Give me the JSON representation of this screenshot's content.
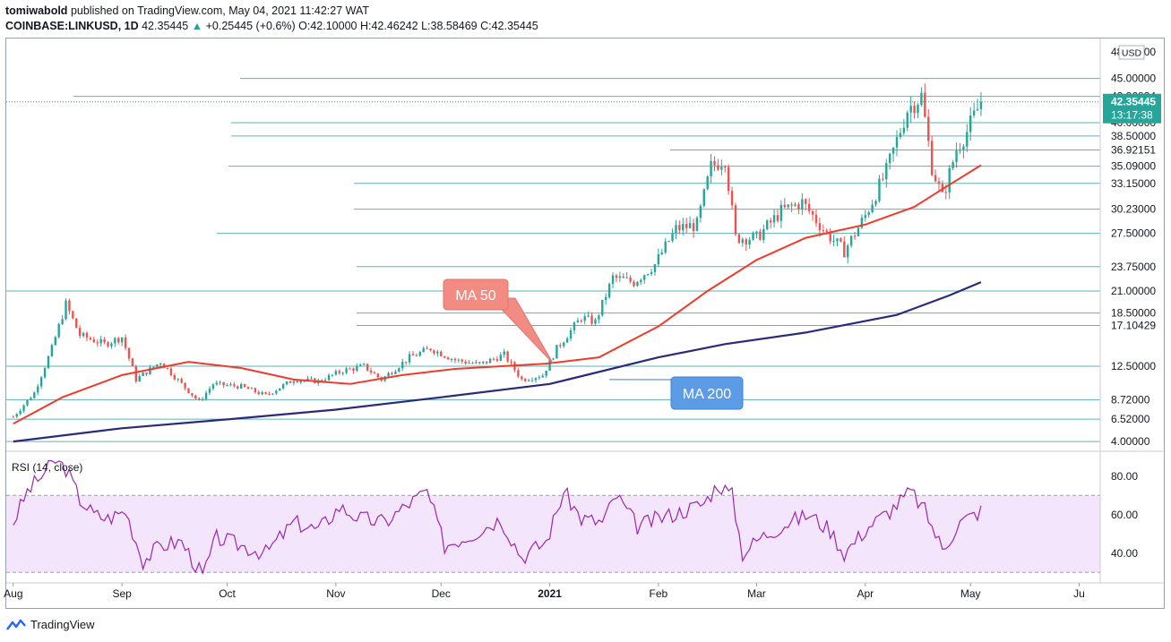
{
  "header": {
    "publisher": "tomiwabold",
    "published_text": "published on TradingView.com, May 04, 2021 11:42:27 WAT",
    "symbol": "COINBASE:LINKUSD, 1D",
    "last": "42.35445",
    "change": "+0.25445 (+0.6%)",
    "ohlc": "O:42.10000 H:42.46242 L:38.58469 C:42.35445"
  },
  "footer": {
    "brand": "TradingView",
    "logo_icon": "tradingview-logo-icon"
  },
  "colors": {
    "up": "#26a69a",
    "down": "#ef5350",
    "ma50": "#ef3b2c",
    "ma200": "#2a2a7c",
    "hline": "#5fb3b3",
    "rsi": "#9c27b0",
    "rsi_band": "#f3e5fb",
    "ma50_label_bg": "#f28b82",
    "ma200_label_bg": "#5c9ce6"
  },
  "chart_data": [
    {
      "type": "candlestick",
      "title": "COINBASE:LINKUSD, 1D",
      "currency": "USD",
      "x_ticks": [
        "Aug",
        "Sep",
        "Oct",
        "Nov",
        "Dec",
        "2021",
        "Feb",
        "Mar",
        "Apr",
        "May",
        "Ju"
      ],
      "y_range": [
        3,
        49
      ],
      "price_axis_labels": [
        "48.00000",
        "45.00000",
        "42.96834",
        "40.00000",
        "38.50000",
        "36.92151",
        "35.09000",
        "33.15000",
        "30.23000",
        "27.50000",
        "23.75000",
        "21.00000",
        "18.50000",
        "17.10429",
        "12.50000",
        "8.72000",
        "6.52000",
        "4.00000"
      ],
      "horizontal_levels": [
        45.0,
        42.96834,
        40.0,
        38.5,
        36.92151,
        35.09,
        33.15,
        30.23,
        27.5,
        23.75,
        21.0,
        18.5,
        17.10429,
        12.5,
        8.72,
        6.52,
        4.0
      ],
      "last_price": {
        "value": "42.35445",
        "countdown": "13:17:38"
      },
      "price_path": [
        [
          "2020-08-01",
          6.8
        ],
        [
          "2020-08-07",
          9.5
        ],
        [
          "2020-08-12",
          14.5
        ],
        [
          "2020-08-16",
          19.5
        ],
        [
          "2020-08-20",
          16.0
        ],
        [
          "2020-08-27",
          15.0
        ],
        [
          "2020-09-01",
          15.8
        ],
        [
          "2020-09-05",
          11.0
        ],
        [
          "2020-09-12",
          13.0
        ],
        [
          "2020-09-18",
          10.5
        ],
        [
          "2020-09-23",
          8.5
        ],
        [
          "2020-09-27",
          10.5
        ],
        [
          "2020-10-05",
          10.2
        ],
        [
          "2020-10-12",
          9.2
        ],
        [
          "2020-10-20",
          11.0
        ],
        [
          "2020-10-27",
          10.8
        ],
        [
          "2020-11-03",
          12.0
        ],
        [
          "2020-11-09",
          12.5
        ],
        [
          "2020-11-14",
          11.0
        ],
        [
          "2020-11-22",
          13.5
        ],
        [
          "2020-11-28",
          14.5
        ],
        [
          "2020-12-05",
          13.2
        ],
        [
          "2020-12-12",
          12.7
        ],
        [
          "2020-12-19",
          13.8
        ],
        [
          "2020-12-24",
          11.0
        ],
        [
          "2020-12-30",
          11.5
        ],
        [
          "2021-01-03",
          14.5
        ],
        [
          "2021-01-10",
          18.0
        ],
        [
          "2021-01-14",
          17.5
        ],
        [
          "2021-01-19",
          22.5
        ],
        [
          "2021-01-25",
          22.0
        ],
        [
          "2021-01-31",
          24.0
        ],
        [
          "2021-02-06",
          28.0
        ],
        [
          "2021-02-12",
          28.5
        ],
        [
          "2021-02-16",
          35.0
        ],
        [
          "2021-02-20",
          36.0
        ],
        [
          "2021-02-23",
          27.0
        ],
        [
          "2021-03-01",
          27.0
        ],
        [
          "2021-03-08",
          30.0
        ],
        [
          "2021-03-14",
          31.0
        ],
        [
          "2021-03-21",
          27.5
        ],
        [
          "2021-03-26",
          25.5
        ],
        [
          "2021-04-01",
          29.5
        ],
        [
          "2021-04-07",
          34.5
        ],
        [
          "2021-04-13",
          41.5
        ],
        [
          "2021-04-17",
          43.0
        ],
        [
          "2021-04-20",
          35.0
        ],
        [
          "2021-04-23",
          31.5
        ],
        [
          "2021-04-27",
          37.0
        ],
        [
          "2021-04-30",
          39.0
        ],
        [
          "2021-05-04",
          42.35
        ]
      ],
      "ma50_path": [
        [
          "2020-08-01",
          6.0
        ],
        [
          "2020-08-15",
          9.0
        ],
        [
          "2020-09-01",
          11.5
        ],
        [
          "2020-09-20",
          13.0
        ],
        [
          "2020-10-05",
          12.3
        ],
        [
          "2020-10-20",
          11.0
        ],
        [
          "2020-11-05",
          10.5
        ],
        [
          "2020-11-20",
          11.5
        ],
        [
          "2020-12-05",
          12.2
        ],
        [
          "2020-12-31",
          12.8
        ],
        [
          "2021-01-15",
          13.5
        ],
        [
          "2021-02-01",
          17.0
        ],
        [
          "2021-02-15",
          21.0
        ],
        [
          "2021-03-01",
          24.5
        ],
        [
          "2021-03-15",
          27.0
        ],
        [
          "2021-04-01",
          28.5
        ],
        [
          "2021-04-15",
          30.5
        ],
        [
          "2021-04-23",
          32.5
        ],
        [
          "2021-05-04",
          35.2
        ]
      ],
      "ma200_path": [
        [
          "2020-08-01",
          4.0
        ],
        [
          "2020-09-01",
          5.5
        ],
        [
          "2020-10-01",
          6.5
        ],
        [
          "2020-11-01",
          7.6
        ],
        [
          "2020-12-01",
          9.0
        ],
        [
          "2021-01-01",
          10.5
        ],
        [
          "2021-02-01",
          13.5
        ],
        [
          "2021-02-20",
          15.0
        ],
        [
          "2021-03-15",
          16.3
        ],
        [
          "2021-04-10",
          18.3
        ],
        [
          "2021-04-25",
          20.5
        ],
        [
          "2021-05-04",
          22.0
        ]
      ],
      "annotations": [
        {
          "text": "MA 50",
          "points_to": [
            "2021-01-02",
            12.8
          ]
        },
        {
          "text": "MA 200",
          "points_to": [
            "2021-01-18",
            11.0
          ]
        }
      ]
    },
    {
      "type": "line",
      "title": "RSI (14, close)",
      "y_range": [
        25,
        92
      ],
      "y_ticks": [
        "80.00",
        "60.00",
        "40.00"
      ],
      "band": [
        30,
        70
      ],
      "points": [
        [
          "2020-08-01",
          56
        ],
        [
          "2020-08-05",
          72
        ],
        [
          "2020-08-09",
          80
        ],
        [
          "2020-08-13",
          88
        ],
        [
          "2020-08-16",
          84
        ],
        [
          "2020-08-20",
          68
        ],
        [
          "2020-08-24",
          60
        ],
        [
          "2020-08-28",
          58
        ],
        [
          "2020-09-02",
          62
        ],
        [
          "2020-09-07",
          36
        ],
        [
          "2020-09-12",
          44
        ],
        [
          "2020-09-18",
          46
        ],
        [
          "2020-09-24",
          28
        ],
        [
          "2020-09-28",
          48
        ],
        [
          "2020-10-05",
          44
        ],
        [
          "2020-10-12",
          40
        ],
        [
          "2020-10-20",
          56
        ],
        [
          "2020-10-27",
          52
        ],
        [
          "2020-11-02",
          64
        ],
        [
          "2020-11-08",
          58
        ],
        [
          "2020-11-15",
          56
        ],
        [
          "2020-11-22",
          66
        ],
        [
          "2020-11-27",
          72
        ],
        [
          "2020-12-02",
          44
        ],
        [
          "2020-12-10",
          50
        ],
        [
          "2020-12-18",
          58
        ],
        [
          "2020-12-24",
          38
        ],
        [
          "2020-12-31",
          46
        ],
        [
          "2021-01-05",
          72
        ],
        [
          "2021-01-10",
          58
        ],
        [
          "2021-01-16",
          56
        ],
        [
          "2021-01-20",
          70
        ],
        [
          "2021-01-26",
          54
        ],
        [
          "2021-02-01",
          58
        ],
        [
          "2021-02-08",
          62
        ],
        [
          "2021-02-14",
          66
        ],
        [
          "2021-02-18",
          76
        ],
        [
          "2021-02-22",
          70
        ],
        [
          "2021-02-25",
          40
        ],
        [
          "2021-03-02",
          48
        ],
        [
          "2021-03-10",
          56
        ],
        [
          "2021-03-16",
          60
        ],
        [
          "2021-03-22",
          52
        ],
        [
          "2021-03-26",
          40
        ],
        [
          "2021-04-02",
          54
        ],
        [
          "2021-04-08",
          62
        ],
        [
          "2021-04-14",
          72
        ],
        [
          "2021-04-18",
          62
        ],
        [
          "2021-04-23",
          42
        ],
        [
          "2021-04-28",
          56
        ],
        [
          "2021-05-04",
          62
        ]
      ]
    }
  ]
}
